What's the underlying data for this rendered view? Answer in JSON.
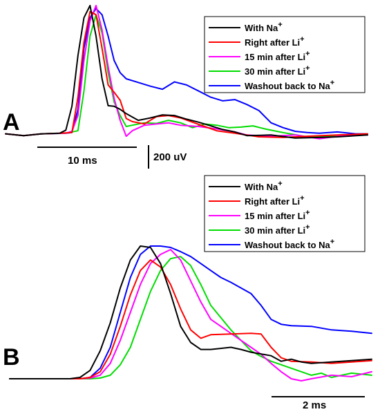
{
  "colors": {
    "na": "#000000",
    "li_right": "#ff0000",
    "li_15": "#ff00ff",
    "li_30": "#00dd00",
    "washout": "#0000ff"
  },
  "chart_data": [
    {
      "type": "line",
      "panel_label": "A",
      "legend": {
        "placement": "top-right"
      },
      "grid": false,
      "scale_bars": {
        "time": "10 ms",
        "amplitude": "200 uV"
      },
      "series": [
        {
          "name": "With Na",
          "superscript": "+",
          "color": "#000000",
          "points": [
            [
              0,
              0
            ],
            [
              3,
              -3
            ],
            [
              6,
              0
            ],
            [
              9,
              1
            ],
            [
              10,
              6
            ],
            [
              11,
              45
            ],
            [
              12,
              128
            ],
            [
              13,
              190
            ],
            [
              14,
              210
            ],
            [
              15,
              160
            ],
            [
              16,
              90
            ],
            [
              17,
              46
            ],
            [
              18,
              45
            ],
            [
              19,
              40
            ],
            [
              20,
              33
            ],
            [
              22,
              22
            ],
            [
              24,
              26
            ],
            [
              26,
              31
            ],
            [
              28,
              30
            ],
            [
              30,
              24
            ],
            [
              32,
              19
            ],
            [
              34,
              13
            ],
            [
              36,
              7
            ],
            [
              38,
              3
            ],
            [
              40,
              -3
            ],
            [
              44,
              -2
            ],
            [
              48,
              -7
            ],
            [
              52,
              -6
            ],
            [
              55,
              -5
            ],
            [
              60,
              -2
            ]
          ]
        },
        {
          "name": "Right after  Li",
          "superscript": "+",
          "color": "#ff0000",
          "points": [
            [
              0,
              0
            ],
            [
              3,
              -3
            ],
            [
              6,
              0
            ],
            [
              9,
              1
            ],
            [
              11,
              2
            ],
            [
              12,
              60
            ],
            [
              13,
              150
            ],
            [
              14,
              200
            ],
            [
              15,
              195
            ],
            [
              16,
              140
            ],
            [
              17,
              80
            ],
            [
              18,
              68
            ],
            [
              19,
              55
            ],
            [
              20,
              25
            ],
            [
              21,
              20
            ],
            [
              23,
              16
            ],
            [
              25,
              28
            ],
            [
              27,
              30
            ],
            [
              29,
              26
            ],
            [
              31,
              19
            ],
            [
              33,
              12
            ],
            [
              35,
              5
            ],
            [
              38,
              1
            ],
            [
              42,
              -5
            ],
            [
              46,
              -6
            ],
            [
              50,
              -4
            ],
            [
              55,
              -2
            ],
            [
              60,
              0
            ]
          ]
        },
        {
          "name": "15 min after Li",
          "superscript": "+",
          "color": "#ff00ff",
          "points": [
            [
              0,
              0
            ],
            [
              3,
              -3
            ],
            [
              6,
              0
            ],
            [
              10,
              1
            ],
            [
              11,
              4
            ],
            [
              12,
              30
            ],
            [
              13,
              120
            ],
            [
              14,
              185
            ],
            [
              15,
              210
            ],
            [
              16,
              170
            ],
            [
              17,
              110
            ],
            [
              18,
              58
            ],
            [
              19,
              22
            ],
            [
              20,
              -4
            ],
            [
              21,
              5
            ],
            [
              23,
              14
            ],
            [
              25,
              16
            ],
            [
              27,
              18
            ],
            [
              29,
              14
            ],
            [
              32,
              12
            ],
            [
              35,
              8
            ],
            [
              38,
              3
            ],
            [
              40,
              -2
            ],
            [
              44,
              -4
            ],
            [
              48,
              -2
            ],
            [
              52,
              -8
            ],
            [
              56,
              -3
            ],
            [
              60,
              -2
            ]
          ]
        },
        {
          "name": "30 min after Li",
          "superscript": "+",
          "color": "#00dd00",
          "points": [
            [
              0,
              0
            ],
            [
              3,
              -3
            ],
            [
              6,
              0
            ],
            [
              10,
              1
            ],
            [
              12,
              5
            ],
            [
              13,
              70
            ],
            [
              14,
              160
            ],
            [
              15,
              195
            ],
            [
              16,
              165
            ],
            [
              17,
              100
            ],
            [
              18,
              52
            ],
            [
              19,
              30
            ],
            [
              20,
              12
            ],
            [
              21,
              14
            ],
            [
              23,
              18
            ],
            [
              25,
              17
            ],
            [
              27,
              22
            ],
            [
              29,
              18
            ],
            [
              31,
              10
            ],
            [
              33,
              16
            ],
            [
              35,
              14
            ],
            [
              37,
              10
            ],
            [
              39,
              11
            ],
            [
              41,
              13
            ],
            [
              43,
              8
            ],
            [
              46,
              2
            ],
            [
              50,
              -5
            ],
            [
              55,
              -3
            ],
            [
              60,
              0
            ]
          ]
        },
        {
          "name": "Washout back to Na",
          "superscript": "+",
          "color": "#0000ff",
          "points": [
            [
              0,
              0
            ],
            [
              3,
              -3
            ],
            [
              6,
              0
            ],
            [
              10,
              1
            ],
            [
              11,
              2
            ],
            [
              12,
              40
            ],
            [
              13,
              140
            ],
            [
              14,
              190
            ],
            [
              15,
              205
            ],
            [
              16,
              195
            ],
            [
              17,
              160
            ],
            [
              18,
              120
            ],
            [
              19,
              100
            ],
            [
              20,
              90
            ],
            [
              22,
              84
            ],
            [
              24,
              78
            ],
            [
              26,
              73
            ],
            [
              28,
              85
            ],
            [
              30,
              80
            ],
            [
              32,
              70
            ],
            [
              34,
              60
            ],
            [
              36,
              54
            ],
            [
              38,
              56
            ],
            [
              40,
              48
            ],
            [
              42,
              38
            ],
            [
              44,
              18
            ],
            [
              46,
              10
            ],
            [
              48,
              4
            ],
            [
              50,
              2
            ],
            [
              52,
              1
            ],
            [
              55,
              3
            ],
            [
              58,
              0
            ],
            [
              60,
              0
            ]
          ]
        }
      ]
    },
    {
      "type": "line",
      "panel_label": "B",
      "legend": {
        "placement": "top-right"
      },
      "grid": false,
      "scale_bars": {
        "time": "2 ms"
      },
      "series": [
        {
          "name": "With Na",
          "superscript": "+",
          "color": "#000000",
          "points": [
            [
              0,
              0
            ],
            [
              3,
              0
            ],
            [
              3.5,
              2
            ],
            [
              4,
              12
            ],
            [
              4.5,
              40
            ],
            [
              5,
              80
            ],
            [
              5.5,
              130
            ],
            [
              6,
              170
            ],
            [
              6.5,
              190
            ],
            [
              7,
              188
            ],
            [
              7.5,
              165
            ],
            [
              8,
              122
            ],
            [
              8.5,
              75
            ],
            [
              9,
              52
            ],
            [
              9.5,
              42
            ],
            [
              10,
              42
            ],
            [
              11,
              45
            ],
            [
              11.5,
              42
            ],
            [
              12,
              38
            ],
            [
              13,
              33
            ],
            [
              13.5,
              25
            ],
            [
              14,
              28
            ],
            [
              14.5,
              24
            ],
            [
              15,
              22
            ],
            [
              16,
              24
            ],
            [
              17,
              26
            ],
            [
              18,
              28
            ]
          ]
        },
        {
          "name": "Right after  Li",
          "superscript": "+",
          "color": "#ff0000",
          "points": [
            [
              0,
              0
            ],
            [
              3.5,
              0
            ],
            [
              4,
              2
            ],
            [
              4.5,
              10
            ],
            [
              5,
              35
            ],
            [
              5.5,
              75
            ],
            [
              6,
              120
            ],
            [
              6.5,
              155
            ],
            [
              7,
              170
            ],
            [
              7.5,
              160
            ],
            [
              8,
              135
            ],
            [
              8.5,
              100
            ],
            [
              9,
              70
            ],
            [
              9.5,
              58
            ],
            [
              10,
              63
            ],
            [
              11,
              64
            ],
            [
              12,
              65
            ],
            [
              12.5,
              64
            ],
            [
              13,
              45
            ],
            [
              13.5,
              30
            ],
            [
              14,
              25
            ],
            [
              15,
              24
            ],
            [
              16,
              22
            ],
            [
              17,
              24
            ],
            [
              18,
              26
            ]
          ]
        },
        {
          "name": "15 min after Li",
          "superscript": "+",
          "color": "#ff00ff",
          "points": [
            [
              0,
              0
            ],
            [
              3.5,
              0
            ],
            [
              4,
              1
            ],
            [
              4.5,
              5
            ],
            [
              5,
              22
            ],
            [
              5.5,
              55
            ],
            [
              6,
              95
            ],
            [
              6.5,
              135
            ],
            [
              7,
              165
            ],
            [
              7.5,
              178
            ],
            [
              8,
              185
            ],
            [
              8.5,
              170
            ],
            [
              9,
              140
            ],
            [
              9.5,
              110
            ],
            [
              10,
              85
            ],
            [
              11,
              65
            ],
            [
              12,
              45
            ],
            [
              12.5,
              35
            ],
            [
              13,
              22
            ],
            [
              13.5,
              10
            ],
            [
              14,
              0
            ],
            [
              14.5,
              -3
            ],
            [
              15,
              0
            ],
            [
              16,
              5
            ],
            [
              17,
              3
            ],
            [
              18,
              10
            ]
          ]
        },
        {
          "name": "30 min after Li",
          "superscript": "+",
          "color": "#00dd00",
          "points": [
            [
              0,
              0
            ],
            [
              4,
              0
            ],
            [
              4.5,
              1
            ],
            [
              5,
              5
            ],
            [
              5.5,
              20
            ],
            [
              6,
              45
            ],
            [
              6.5,
              85
            ],
            [
              7,
              125
            ],
            [
              7.5,
              155
            ],
            [
              8,
              172
            ],
            [
              8.5,
              175
            ],
            [
              9,
              162
            ],
            [
              9.5,
              135
            ],
            [
              10,
              105
            ],
            [
              11,
              70
            ],
            [
              12,
              40
            ],
            [
              12.5,
              32
            ],
            [
              13,
              25
            ],
            [
              14,
              15
            ],
            [
              15,
              5
            ],
            [
              15.5,
              8
            ],
            [
              16,
              2
            ],
            [
              17,
              8
            ],
            [
              18,
              5
            ]
          ]
        },
        {
          "name": "Washout back to Na",
          "superscript": "+",
          "color": "#0000ff",
          "points": [
            [
              0,
              0
            ],
            [
              3.5,
              0
            ],
            [
              4,
              2
            ],
            [
              4.5,
              15
            ],
            [
              5,
              45
            ],
            [
              5.5,
              95
            ],
            [
              6,
              145
            ],
            [
              6.5,
              178
            ],
            [
              7,
              190
            ],
            [
              7.5,
              190
            ],
            [
              8,
              188
            ],
            [
              8.5,
              182
            ],
            [
              9,
              175
            ],
            [
              9.5,
              165
            ],
            [
              10,
              155
            ],
            [
              10.5,
              145
            ],
            [
              11,
              138
            ],
            [
              12,
              122
            ],
            [
              12.5,
              105
            ],
            [
              13,
              85
            ],
            [
              13.5,
              78
            ],
            [
              14,
              76
            ],
            [
              15,
              75
            ],
            [
              16,
              70
            ],
            [
              17,
              68
            ],
            [
              18,
              65
            ]
          ]
        }
      ]
    }
  ]
}
